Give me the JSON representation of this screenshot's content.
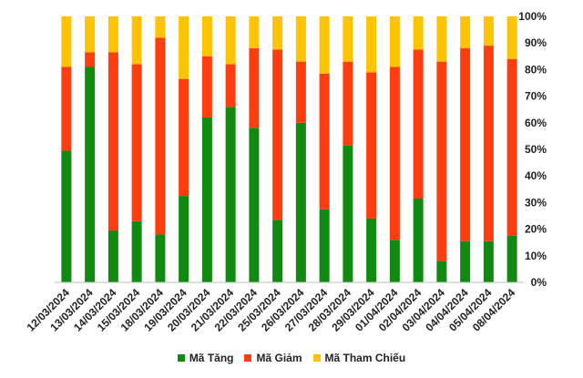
{
  "chart_data": {
    "type": "bar",
    "stacked": true,
    "normalized": true,
    "categories": [
      "12/03/2024",
      "13/03/2024",
      "14/03/2024",
      "15/03/2024",
      "18/03/2024",
      "19/03/2024",
      "20/03/2024",
      "21/03/2024",
      "22/03/2024",
      "25/03/2024",
      "26/03/2024",
      "27/03/2024",
      "28/03/2024",
      "29/03/2024",
      "01/04/2024",
      "02/04/2024",
      "03/04/2024",
      "04/04/2024",
      "05/04/2024",
      "08/04/2024"
    ],
    "series": [
      {
        "name": "Mã Tăng",
        "color": "#118A11",
        "values": [
          49.5,
          81,
          19.5,
          23,
          18,
          32.5,
          62,
          66,
          58,
          23.5,
          60,
          27.5,
          51.5,
          24,
          16,
          31.5,
          8,
          15.5,
          15.5,
          17.5
        ]
      },
      {
        "name": "Mã Giảm",
        "color": "#FF3D0F",
        "values": [
          31.5,
          5.5,
          67,
          59,
          74,
          44,
          23,
          16,
          30,
          64,
          23,
          51,
          31.5,
          55,
          65,
          56,
          75,
          72.5,
          73.5,
          66.5
        ]
      },
      {
        "name": "Mã Tham Chiếu",
        "color": "#FFC300",
        "values": [
          19,
          13.5,
          13.5,
          18,
          8,
          23.5,
          15,
          18,
          12,
          12.5,
          17,
          21.5,
          17,
          21,
          19,
          12.5,
          17,
          12,
          11,
          16
        ]
      }
    ],
    "y_axis": {
      "position": "right",
      "ylim": [
        0,
        100
      ],
      "ticks": [
        0,
        10,
        20,
        30,
        40,
        50,
        60,
        70,
        80,
        90,
        100
      ],
      "tick_labels": [
        "0%",
        "10%",
        "20%",
        "30%",
        "40%",
        "50%",
        "60%",
        "70%",
        "80%",
        "90%",
        "100%"
      ]
    },
    "x_tick_rotation": "-45deg",
    "grid": false,
    "legend_position": "bottom"
  }
}
